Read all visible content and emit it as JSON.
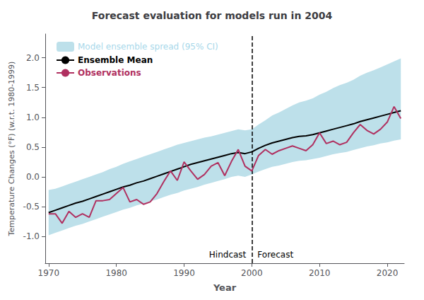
{
  "chart_data": {
    "type": "line",
    "title": "Forecast evaluation for models run in 2004",
    "xlabel": "Year",
    "ylabel": "Temperature Changes (°F) (w.r.t. 1980-1999)",
    "x": [
      1970,
      1971,
      1972,
      1973,
      1974,
      1975,
      1976,
      1977,
      1978,
      1979,
      1980,
      1981,
      1982,
      1983,
      1984,
      1985,
      1986,
      1987,
      1988,
      1989,
      1990,
      1991,
      1992,
      1993,
      1994,
      1995,
      1996,
      1997,
      1998,
      1999,
      2000,
      2001,
      2002,
      2003,
      2004,
      2005,
      2006,
      2007,
      2008,
      2009,
      2010,
      2011,
      2012,
      2013,
      2014,
      2015,
      2016,
      2017,
      2018,
      2019,
      2020,
      2021,
      2022
    ],
    "series": [
      {
        "name": "Model ensemble spread (95% CI)",
        "type": "band",
        "color": "#bde0ea",
        "label_color": "#a8d8ea",
        "lower": [
          -0.98,
          -0.94,
          -0.9,
          -0.86,
          -0.82,
          -0.79,
          -0.75,
          -0.71,
          -0.67,
          -0.63,
          -0.59,
          -0.55,
          -0.52,
          -0.48,
          -0.45,
          -0.41,
          -0.38,
          -0.34,
          -0.3,
          -0.27,
          -0.23,
          -0.2,
          -0.17,
          -0.13,
          -0.1,
          -0.07,
          -0.04,
          0.0,
          0.02,
          0.0,
          0.04,
          0.09,
          0.13,
          0.17,
          0.19,
          0.22,
          0.25,
          0.27,
          0.28,
          0.3,
          0.32,
          0.35,
          0.38,
          0.4,
          0.42,
          0.45,
          0.48,
          0.51,
          0.53,
          0.56,
          0.58,
          0.61,
          0.63
        ],
        "upper": [
          -0.22,
          -0.2,
          -0.16,
          -0.12,
          -0.08,
          -0.04,
          0.0,
          0.04,
          0.08,
          0.13,
          0.17,
          0.22,
          0.26,
          0.3,
          0.34,
          0.38,
          0.42,
          0.46,
          0.5,
          0.54,
          0.57,
          0.6,
          0.63,
          0.66,
          0.68,
          0.71,
          0.74,
          0.77,
          0.8,
          0.78,
          0.8,
          0.88,
          0.95,
          1.03,
          1.08,
          1.14,
          1.2,
          1.25,
          1.28,
          1.32,
          1.38,
          1.43,
          1.49,
          1.54,
          1.58,
          1.63,
          1.7,
          1.75,
          1.79,
          1.84,
          1.89,
          1.94,
          1.99
        ]
      },
      {
        "name": "Ensemble Mean",
        "type": "line",
        "color": "#000000",
        "values": [
          -0.6,
          -0.56,
          -0.52,
          -0.48,
          -0.44,
          -0.41,
          -0.37,
          -0.33,
          -0.29,
          -0.25,
          -0.21,
          -0.17,
          -0.14,
          -0.1,
          -0.07,
          -0.03,
          0.01,
          0.05,
          0.09,
          0.13,
          0.17,
          0.21,
          0.24,
          0.27,
          0.3,
          0.33,
          0.36,
          0.39,
          0.41,
          0.39,
          0.42,
          0.48,
          0.53,
          0.57,
          0.6,
          0.63,
          0.66,
          0.68,
          0.69,
          0.71,
          0.74,
          0.77,
          0.8,
          0.83,
          0.86,
          0.89,
          0.93,
          0.96,
          0.99,
          1.02,
          1.05,
          1.08,
          1.11
        ]
      },
      {
        "name": "Observations",
        "type": "line",
        "color": "#b03060",
        "values": [
          -0.62,
          -0.62,
          -0.78,
          -0.58,
          -0.68,
          -0.62,
          -0.68,
          -0.4,
          -0.4,
          -0.38,
          -0.28,
          -0.18,
          -0.42,
          -0.38,
          -0.46,
          -0.42,
          -0.28,
          -0.08,
          0.1,
          -0.06,
          0.25,
          0.1,
          -0.04,
          0.04,
          0.18,
          0.24,
          0.02,
          0.26,
          0.46,
          0.18,
          0.1,
          0.36,
          0.46,
          0.38,
          0.44,
          0.48,
          0.52,
          0.48,
          0.44,
          0.54,
          0.74,
          0.56,
          0.6,
          0.54,
          0.58,
          0.74,
          0.88,
          0.78,
          0.72,
          0.8,
          0.92,
          1.18,
          0.98
        ]
      }
    ],
    "divider_x": 2000,
    "divider_color": "#000000",
    "annotations": [
      {
        "text": "Hindcast",
        "side": "left"
      },
      {
        "text": "Forecast",
        "side": "right"
      }
    ],
    "xlim": [
      1969.5,
      2022.5
    ],
    "xticks": [
      1970,
      1980,
      1990,
      2000,
      2010,
      2020
    ],
    "ylim": [
      -1.45,
      2.4
    ],
    "yticks": [
      {
        "value": -1.0,
        "label": "-1.0"
      },
      -0.5,
      {
        "value": 0.0,
        "label": "0.0"
      },
      0.5,
      {
        "value": 1.0,
        "label": "1.0"
      },
      1.5,
      {
        "value": 2.0,
        "label": "2.0"
      }
    ],
    "grid": false,
    "legend": "upper left"
  }
}
